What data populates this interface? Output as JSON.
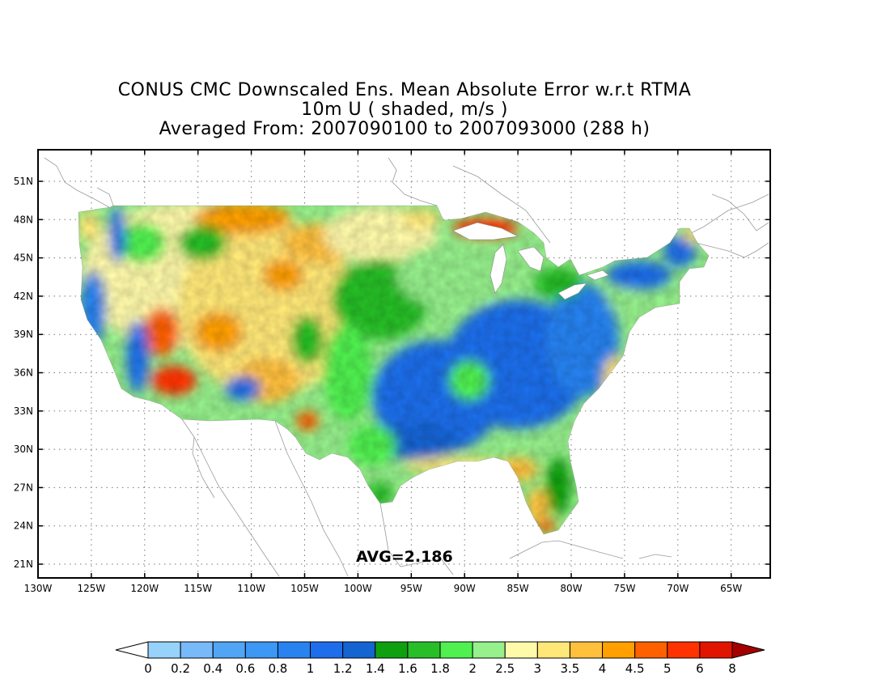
{
  "title": {
    "line1": "CONUS CMC Downscaled Ens. Mean Absolute Error w.r.t RTMA",
    "line2": "10m U ( shaded, m/s )",
    "line3": "Averaged From: 2007090100 to 2007093000 (288 h)"
  },
  "map": {
    "lat_labels": [
      "51N",
      "48N",
      "45N",
      "42N",
      "39N",
      "36N",
      "33N",
      "30N",
      "27N",
      "24N",
      "21N"
    ],
    "lon_labels": [
      "130W",
      "125W",
      "120W",
      "115W",
      "110W",
      "105W",
      "100W",
      "95W",
      "90W",
      "85W",
      "80W",
      "75W",
      "70W",
      "65W"
    ],
    "avg_label": "AVG=2.186",
    "field": "10m U mean absolute error (m/s)"
  },
  "colorbar": {
    "labels": [
      "0",
      "0.2",
      "0.4",
      "0.6",
      "0.8",
      "1",
      "1.2",
      "1.4",
      "1.6",
      "1.8",
      "2",
      "2.5",
      "3",
      "3.5",
      "4",
      "4.5",
      "5",
      "6",
      "8"
    ],
    "colors": [
      "#96d2fa",
      "#78b9fa",
      "#50a5f5",
      "#3c97f5",
      "#2882f0",
      "#1e6eeb",
      "#1464d2",
      "#0fa00f",
      "#28be28",
      "#50f050",
      "#96f08c",
      "#fffaaa",
      "#ffe878",
      "#ffc03c",
      "#ffa000",
      "#ff6000",
      "#ff3200",
      "#e11400",
      "#a50000"
    ],
    "under_color": "#ffffff",
    "over_color": "#a50000"
  }
}
